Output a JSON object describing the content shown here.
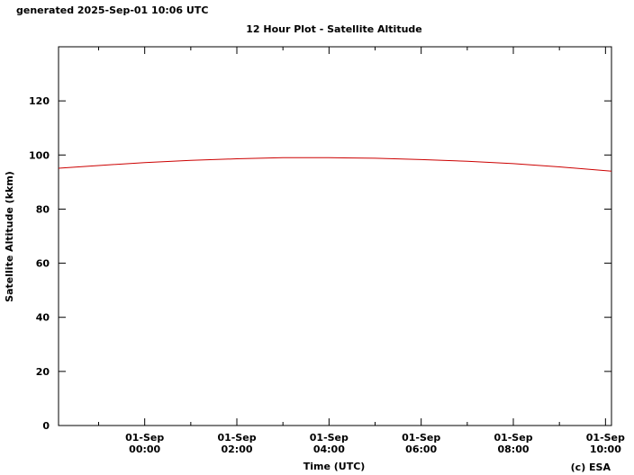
{
  "generated_text": "generated 2025-Sep-01 10:06 UTC",
  "copyright": "(c) ESA",
  "chart_data": {
    "type": "line",
    "title": "12 Hour Plot - Satellite Altitude",
    "xlabel": "Time (UTC)",
    "ylabel": "Satellite Altitude (kkm)",
    "ylim": [
      0,
      140
    ],
    "xlim_hours": [
      -1.87,
      10.13
    ],
    "yticks": [
      0,
      20,
      40,
      60,
      80,
      100,
      120
    ],
    "xticks": [
      {
        "hour": 0,
        "date": "01-Sep",
        "time": "00:00"
      },
      {
        "hour": 2,
        "date": "01-Sep",
        "time": "02:00"
      },
      {
        "hour": 4,
        "date": "01-Sep",
        "time": "04:00"
      },
      {
        "hour": 6,
        "date": "01-Sep",
        "time": "06:00"
      },
      {
        "hour": 8,
        "date": "01-Sep",
        "time": "08:00"
      },
      {
        "hour": 10,
        "date": "01-Sep",
        "time": "10:00"
      }
    ],
    "minor_xtick_hours": [
      -1,
      1,
      3,
      5,
      7,
      9
    ],
    "grid": false,
    "series": [
      {
        "color": "#cc0000",
        "x_hours": [
          -1.87,
          -1,
          0,
          1,
          2,
          3,
          4,
          5,
          6,
          7,
          8,
          9,
          10.13
        ],
        "values": [
          95.1,
          96.1,
          97.2,
          98.0,
          98.6,
          99.0,
          99.0,
          98.8,
          98.3,
          97.7,
          96.8,
          95.6,
          94.0
        ]
      }
    ]
  }
}
